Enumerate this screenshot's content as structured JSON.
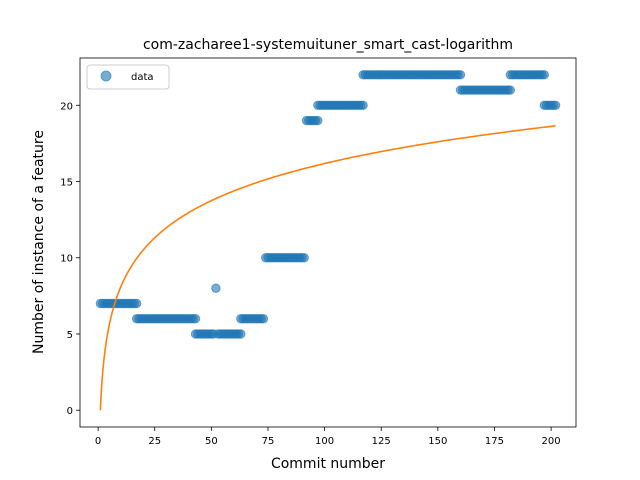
{
  "chart_data": {
    "type": "scatter",
    "title": "com-zacharee1-systemuituner_smart_cast-logarithm",
    "xlabel": "Commit number",
    "ylabel": "Number of instance of a feature",
    "xlim": [
      -8,
      211
    ],
    "ylim": [
      -1.1,
      23.1
    ],
    "xticks": [
      0,
      25,
      50,
      75,
      100,
      125,
      150,
      175,
      200
    ],
    "yticks": [
      0,
      5,
      10,
      15,
      20
    ],
    "legend": {
      "position": "top-left",
      "entries": [
        "data"
      ]
    },
    "colors": {
      "data": "#1f77b4",
      "fit": "#ff7f0e"
    },
    "series": [
      {
        "name": "data",
        "kind": "scatter",
        "segments": [
          {
            "x_from": 1,
            "x_to": 17,
            "y": 7
          },
          {
            "x_from": 17,
            "x_to": 43,
            "y": 6
          },
          {
            "x_from": 43,
            "x_to": 51,
            "y": 5
          },
          {
            "x_from": 52,
            "x_to": 52,
            "y": 8
          },
          {
            "x_from": 53,
            "x_to": 63,
            "y": 5
          },
          {
            "x_from": 63,
            "x_to": 73,
            "y": 6
          },
          {
            "x_from": 74,
            "x_to": 91,
            "y": 10
          },
          {
            "x_from": 92,
            "x_to": 97,
            "y": 19
          },
          {
            "x_from": 97,
            "x_to": 117,
            "y": 20
          },
          {
            "x_from": 117,
            "x_to": 160,
            "y": 22
          },
          {
            "x_from": 160,
            "x_to": 182,
            "y": 21
          },
          {
            "x_from": 182,
            "x_to": 197,
            "y": 22
          },
          {
            "x_from": 197,
            "x_to": 202,
            "y": 20
          }
        ]
      },
      {
        "kind": "line",
        "function": "logarithm",
        "x_range": [
          1,
          202
        ],
        "y_at_start": 0,
        "y_at_end": 18.65
      }
    ]
  }
}
